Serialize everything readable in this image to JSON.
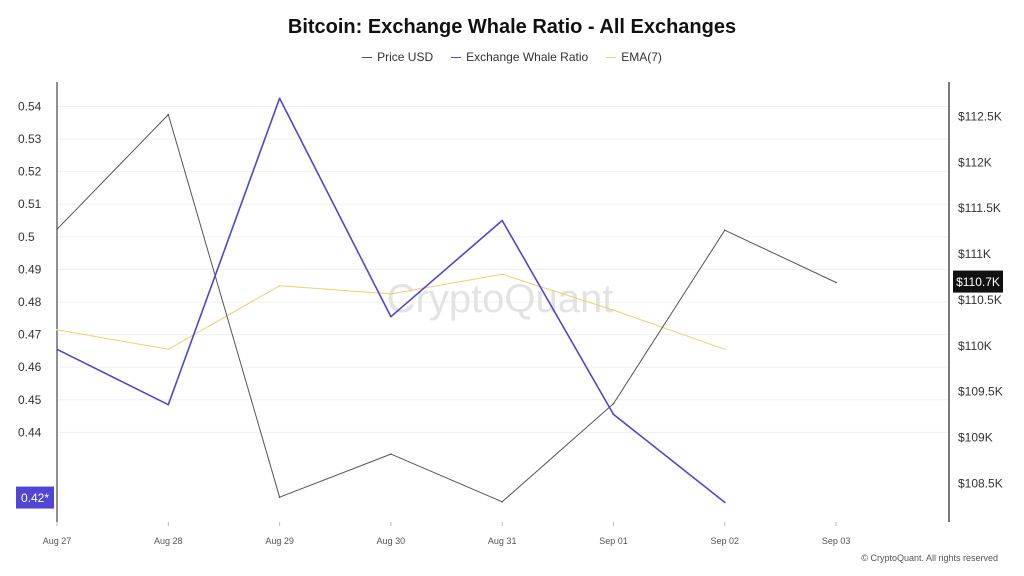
{
  "chart_data": {
    "type": "line",
    "title": "Bitcoin: Exchange Whale Ratio - All Exchanges",
    "categories": [
      "Aug 27",
      "Aug 28",
      "Aug 29",
      "Aug 30",
      "Aug 31",
      "Sep 01",
      "Sep 02",
      "Sep 03"
    ],
    "left_axis": {
      "ylim": [
        0.4125,
        0.5475
      ],
      "ticks": [
        "0.54",
        "0.53",
        "0.52",
        "0.51",
        "0.5",
        "0.49",
        "0.48",
        "0.47",
        "0.46",
        "0.45",
        "0.44"
      ],
      "tick_values": [
        0.54,
        0.53,
        0.52,
        0.51,
        0.5,
        0.49,
        0.48,
        0.47,
        0.46,
        0.45,
        0.44
      ],
      "badge_label": "0.42*",
      "badge_value": 0.42
    },
    "right_axis": {
      "ylim": [
        108080,
        112875
      ],
      "ticks": [
        "$112.5K",
        "$112K",
        "$111.5K",
        "$111K",
        "$110.5K",
        "$110K",
        "$109.5K",
        "$109K",
        "$108.5K"
      ],
      "tick_values": [
        112500,
        112000,
        111500,
        111000,
        110500,
        110000,
        109500,
        109000,
        108500
      ],
      "badge_label": "$110.7K",
      "badge_value": 110700
    },
    "series": [
      {
        "name": "Price USD",
        "axis": "right",
        "color": "#555555",
        "values": [
          111270,
          112520,
          108350,
          108820,
          108300,
          109370,
          111260,
          110690
        ]
      },
      {
        "name": "Exchange Whale Ratio",
        "axis": "left",
        "color": "#5145d6",
        "values": [
          0.4655,
          0.4485,
          0.5425,
          0.4755,
          0.505,
          0.4455,
          0.4185,
          null
        ]
      },
      {
        "name": "EMA(7)",
        "axis": "left",
        "color": "#f2cf6b",
        "values": [
          0.4715,
          0.4655,
          0.485,
          0.4825,
          0.4885,
          0.4775,
          0.4655,
          null
        ]
      }
    ],
    "watermark": "CryptoQuant"
  },
  "footer": "© CryptoQuant. All rights reserved"
}
